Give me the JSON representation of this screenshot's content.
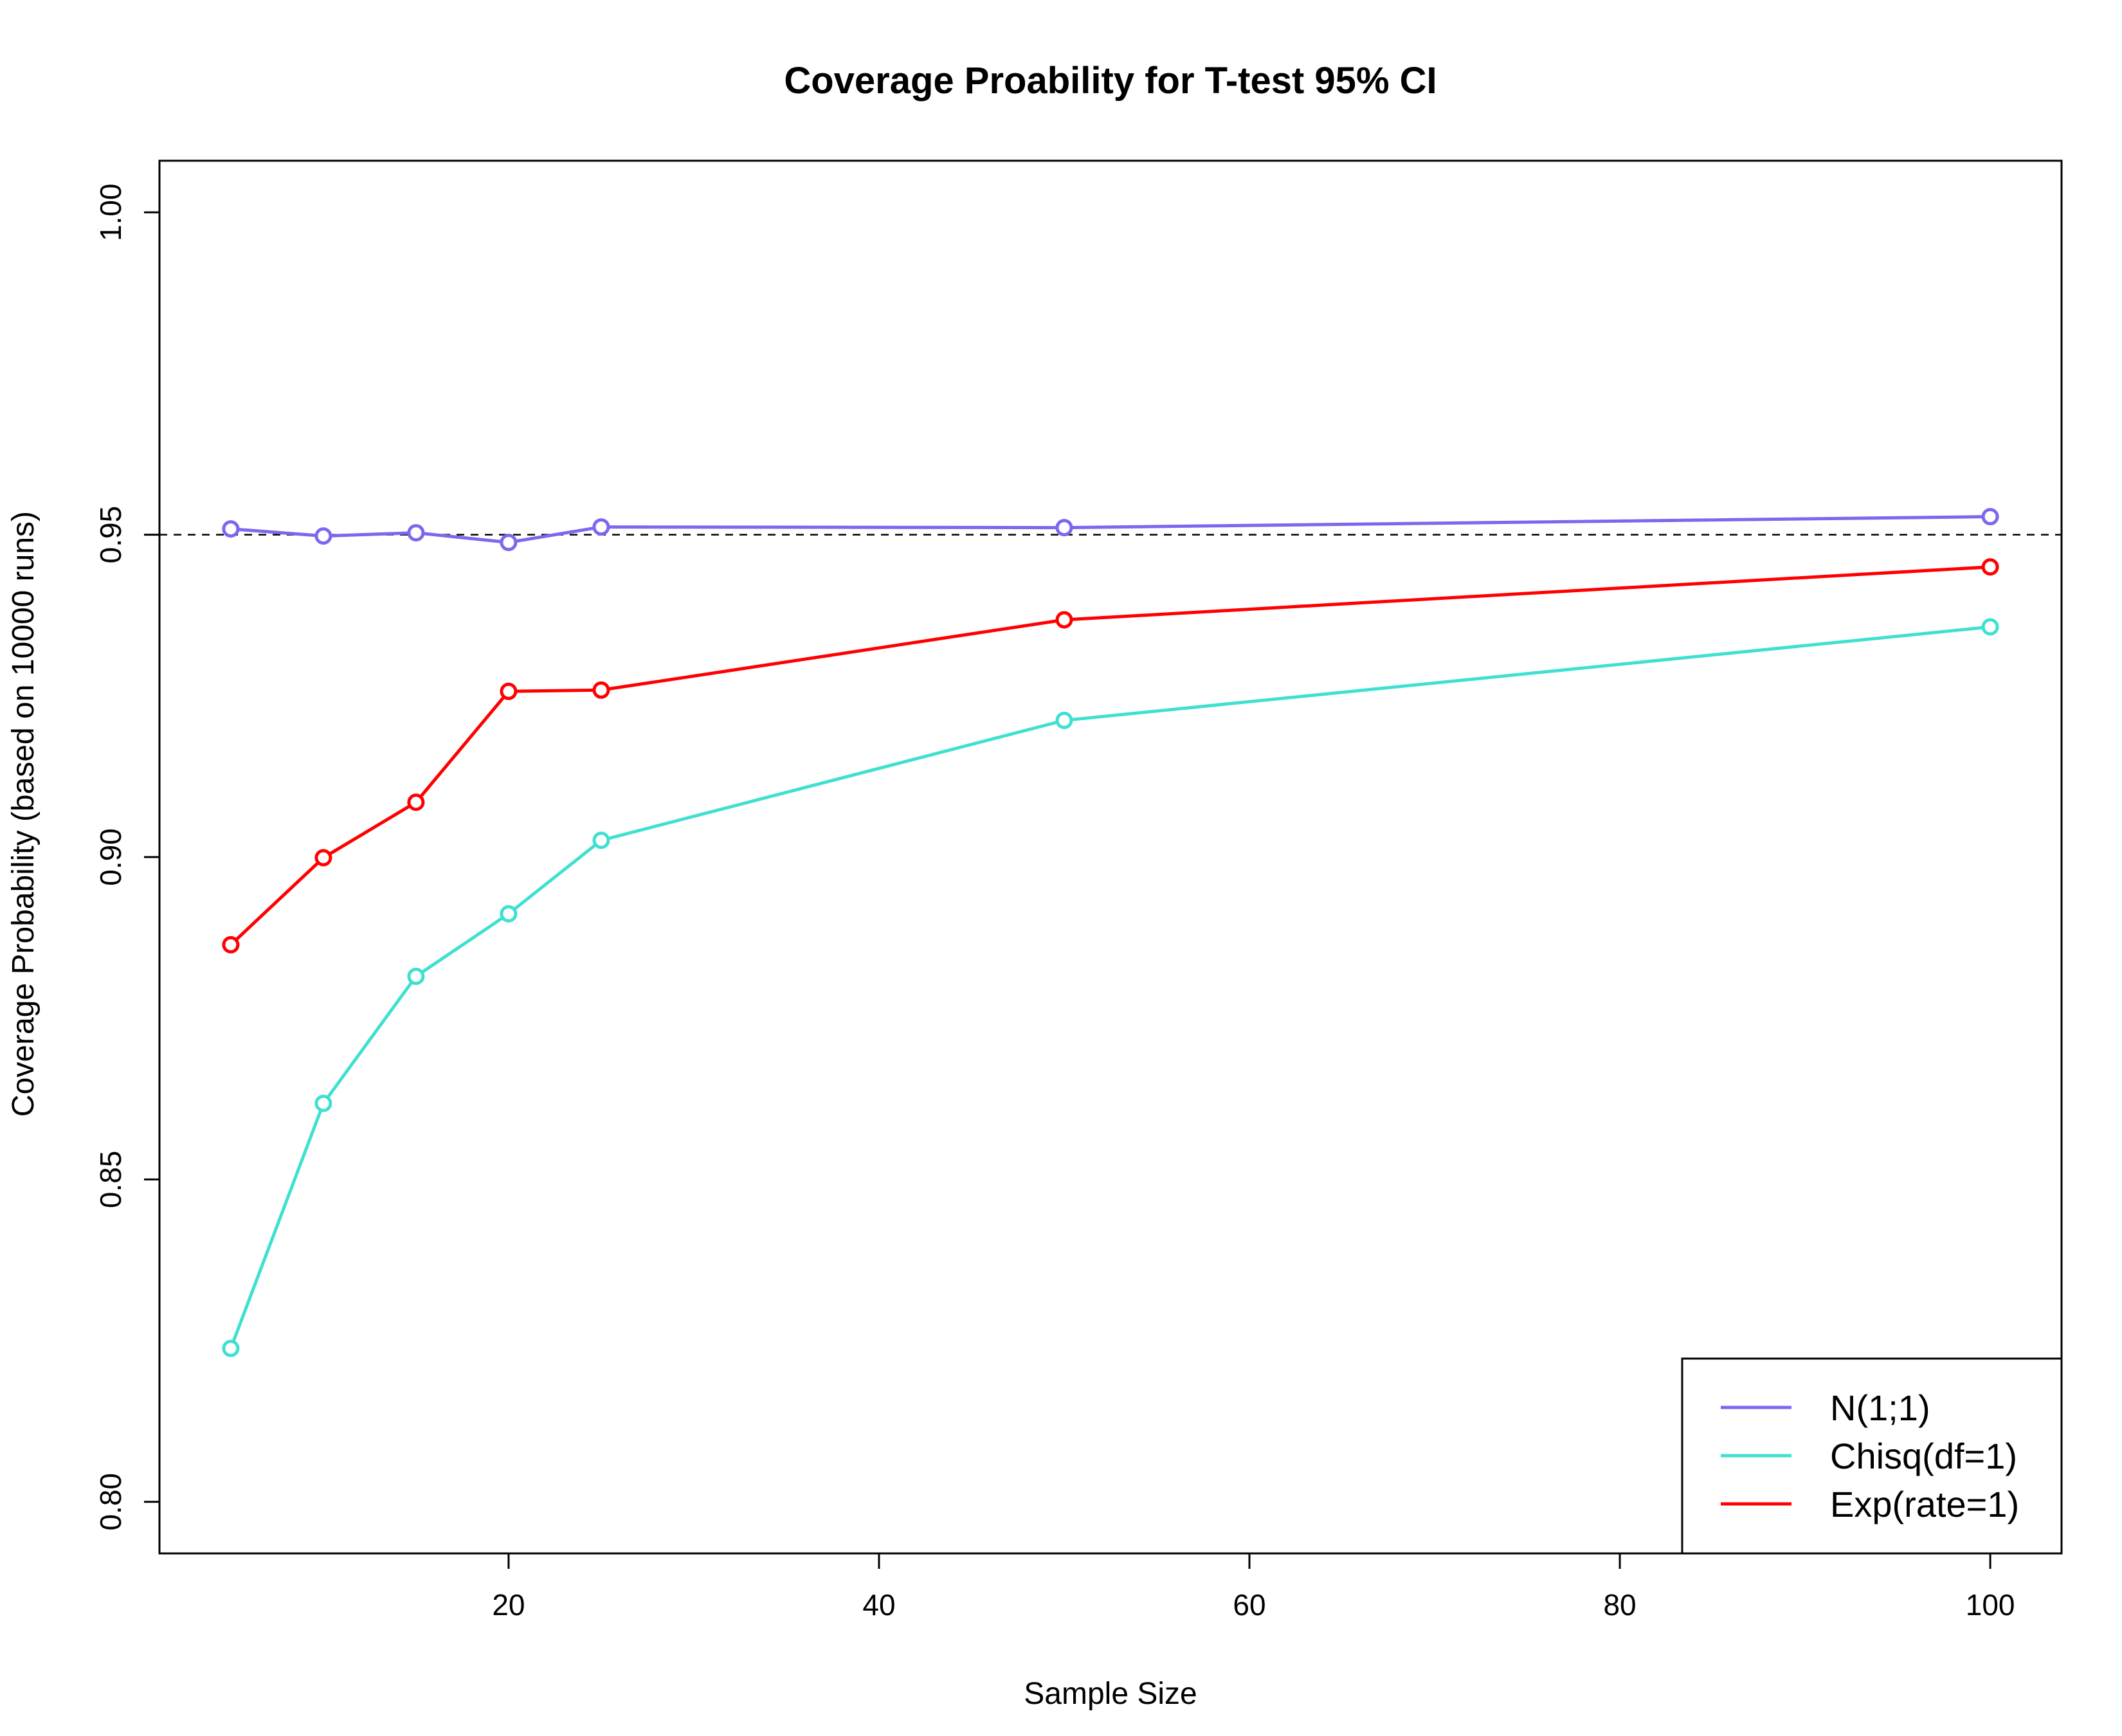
{
  "chart_data": {
    "type": "line",
    "title": "Coverage Proability for T-test 95% CI",
    "xlabel": "Sample Size",
    "ylabel": "Coverage Probability (based on 10000 runs)",
    "xlim": [
      1.15,
      103.85
    ],
    "ylim": [
      0.792,
      1.008
    ],
    "x_ticks": [
      20,
      40,
      60,
      80,
      100
    ],
    "y_ticks": [
      0.8,
      0.85,
      0.9,
      0.95,
      1.0
    ],
    "y_tick_labels": [
      "0.80",
      "0.85",
      "0.90",
      "0.95",
      "1.00"
    ],
    "x": [
      5,
      10,
      15,
      20,
      25,
      50,
      100
    ],
    "reference_line": {
      "y": 0.95,
      "style": "dashed",
      "color": "#000000"
    },
    "legend_position": "bottom-right",
    "grid": false,
    "series": [
      {
        "name": "N(1;1)",
        "color": "#7B68EE",
        "values": [
          0.9509,
          0.9498,
          0.9503,
          0.9488,
          0.9512,
          0.9511,
          0.9528
        ]
      },
      {
        "name": "Chisq(df=1)",
        "color": "#40E0D0",
        "values": [
          0.8238,
          0.8618,
          0.8815,
          0.8912,
          0.9026,
          0.9212,
          0.9357
        ]
      },
      {
        "name": "Exp(rate=1)",
        "color": "#FF0000",
        "values": [
          0.8864,
          0.8999,
          0.9085,
          0.9257,
          0.9259,
          0.9368,
          0.945
        ]
      }
    ]
  }
}
